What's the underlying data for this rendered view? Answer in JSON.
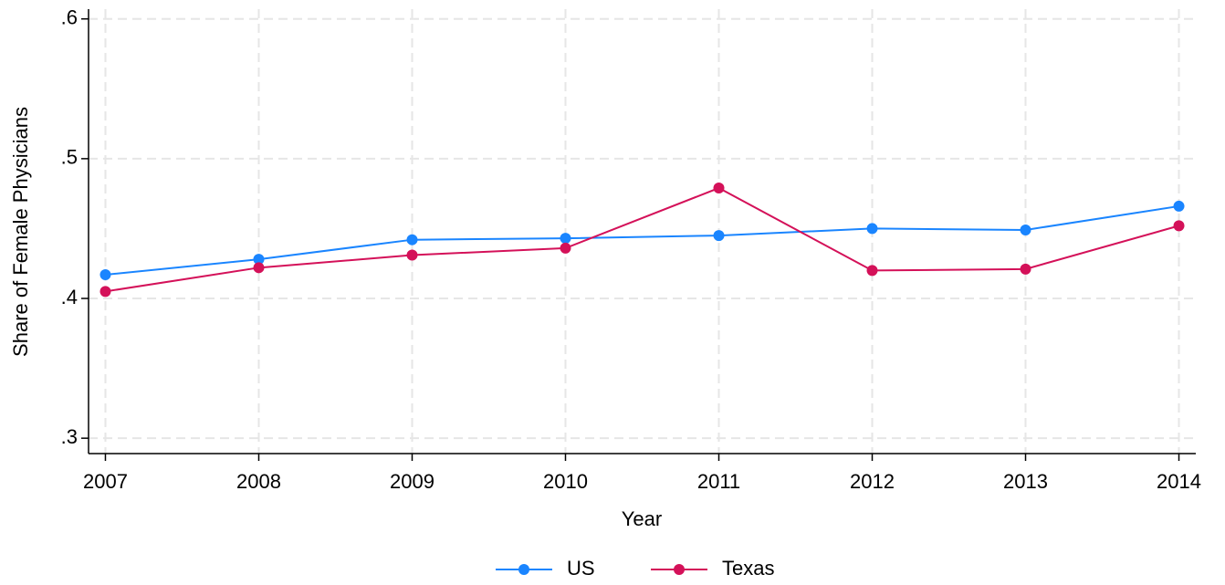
{
  "chart_data": {
    "type": "line",
    "x_label": "Year",
    "y_label": "Share of Female Physicians",
    "x": [
      2007,
      2008,
      2009,
      2010,
      2011,
      2012,
      2013,
      2014
    ],
    "series": [
      {
        "name": "US",
        "color": "#1a85ff",
        "values": [
          0.417,
          0.428,
          0.442,
          0.443,
          0.445,
          0.45,
          0.449,
          0.466
        ]
      },
      {
        "name": "Texas",
        "color": "#d41159",
        "values": [
          0.405,
          0.422,
          0.431,
          0.436,
          0.479,
          0.42,
          0.421,
          0.452
        ]
      }
    ],
    "xlim": [
      2006.89,
      2014.11
    ],
    "xticks": [
      2007,
      2008,
      2009,
      2010,
      2011,
      2012,
      2013,
      2014
    ],
    "ylim": [
      0.289,
      0.607
    ],
    "yticks": [
      {
        "value": 0.3,
        "label": ".3"
      },
      {
        "value": 0.4,
        "label": ".4"
      },
      {
        "value": 0.5,
        "label": ".5"
      },
      {
        "value": 0.6,
        "label": ".6"
      }
    ],
    "grid": true,
    "legend": "bottom"
  }
}
